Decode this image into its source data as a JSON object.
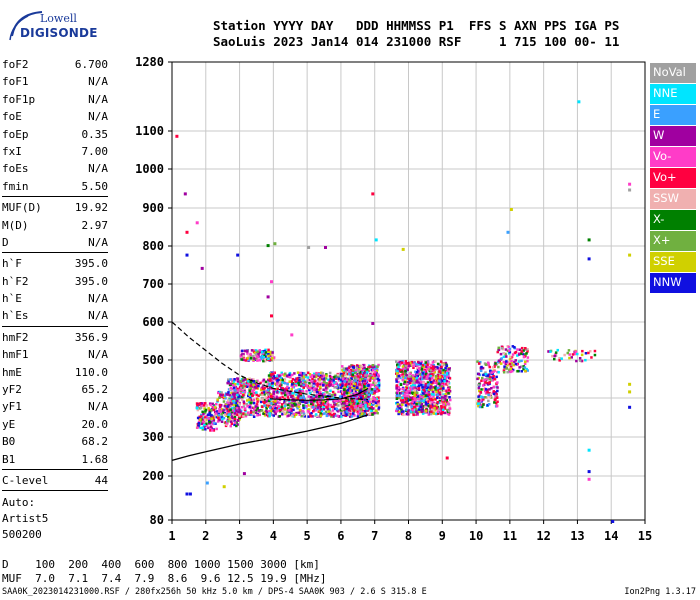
{
  "logo": {
    "top": "Lowell",
    "bottom": "DIGISONDE"
  },
  "header": {
    "line1": "Station YYYY DAY   DDD HHMMSS P1  FFS S AXN PPS IGA PS",
    "line2": "SaoLuis 2023 Jan14 014 231000 RSF     1 715 100 00- 11"
  },
  "params": [
    {
      "group": [
        {
          "k": "foF2",
          "v": "6.700"
        },
        {
          "k": "foF1",
          "v": "N/A"
        },
        {
          "k": "foF1p",
          "v": "N/A"
        },
        {
          "k": "foE",
          "v": "N/A"
        },
        {
          "k": "foEp",
          "v": "0.35"
        },
        {
          "k": "fxI",
          "v": "7.00"
        },
        {
          "k": "foEs",
          "v": "N/A"
        },
        {
          "k": "fmin",
          "v": "5.50"
        }
      ]
    },
    {
      "group": [
        {
          "k": "MUF(D)",
          "v": "19.92"
        },
        {
          "k": "M(D)",
          "v": "2.97"
        },
        {
          "k": "D",
          "v": "N/A"
        }
      ]
    },
    {
      "group": [
        {
          "k": "h`F",
          "v": "395.0"
        },
        {
          "k": "h`F2",
          "v": "395.0"
        },
        {
          "k": "h`E",
          "v": "N/A"
        },
        {
          "k": "h`Es",
          "v": "N/A"
        }
      ]
    },
    {
      "group": [
        {
          "k": "hmF2",
          "v": "356.9"
        },
        {
          "k": "hmF1",
          "v": "N/A"
        },
        {
          "k": "hmE",
          "v": "110.0"
        },
        {
          "k": "yF2",
          "v": "65.2"
        },
        {
          "k": "yF1",
          "v": "N/A"
        },
        {
          "k": "yE",
          "v": "20.0"
        },
        {
          "k": "B0",
          "v": "68.2"
        },
        {
          "k": "B1",
          "v": "1.68"
        }
      ]
    },
    {
      "group": [
        {
          "k": "C-level",
          "v": "44"
        }
      ]
    }
  ],
  "auto": {
    "line1": "Auto:",
    "line2": "Artist5",
    "line3": "500200"
  },
  "legend": [
    {
      "label": "NoVal",
      "color": "#a0a0a0"
    },
    {
      "label": "NNE",
      "color": "#00e5ff"
    },
    {
      "label": "E",
      "color": "#3aa0ff"
    },
    {
      "label": "W",
      "color": "#a000a0"
    },
    {
      "label": "Vo-",
      "color": "#ff3cc8"
    },
    {
      "label": "Vo+",
      "color": "#ff0040"
    },
    {
      "label": "SSW",
      "color": "#f0b0b0"
    },
    {
      "label": "X-",
      "color": "#008000"
    },
    {
      "label": "X+",
      "color": "#70b040"
    },
    {
      "label": "SSE",
      "color": "#d0d000"
    },
    {
      "label": "NNW",
      "color": "#1010e0"
    }
  ],
  "muf_table": {
    "d_row": "D    100  200  400  600  800 1000 1500 3000 [km]",
    "muf_row": "MUF  7.0  7.1  7.4  7.9  8.6  9.6 12.5 19.9 [MHz]"
  },
  "footer": {
    "left": "SAA0K_2023014231000.RSF / 280fx256h 50 kHz 5.0 km / DPS-4 SAA0K 903 / 2.6 S 315.8 E",
    "right": "Ion2Png 1.3.17"
  },
  "chart_data": {
    "type": "scatter",
    "title": "",
    "xlabel": "",
    "ylabel": "",
    "xlim": [
      1,
      15
    ],
    "ylim": [
      80,
      1280
    ],
    "x_ticks": [
      "1",
      "2",
      "3",
      "4",
      "5",
      "6",
      "7",
      "8",
      "9",
      "10",
      "11",
      "12",
      "13",
      "14",
      "15"
    ],
    "y_ticks": [
      "80",
      "200",
      "300",
      "400",
      "500",
      "600",
      "700",
      "800",
      "900",
      "1000",
      "1100",
      "1280"
    ],
    "grid": true,
    "y_scale": "nonlinear",
    "clusters": [
      {
        "f": [
          1.7,
          2.3
        ],
        "h": [
          320,
          390
        ],
        "n": 140
      },
      {
        "f": [
          2.3,
          3.0
        ],
        "h": [
          330,
          420
        ],
        "n": 150
      },
      {
        "f": [
          2.6,
          3.9
        ],
        "h": [
          355,
          455
        ],
        "n": 380
      },
      {
        "f": [
          3.0,
          4.0
        ],
        "h": [
          500,
          530
        ],
        "n": 120
      },
      {
        "f": [
          3.8,
          6.8
        ],
        "h": [
          355,
          470
        ],
        "n": 1100
      },
      {
        "f": [
          6.0,
          7.1
        ],
        "h": [
          360,
          490
        ],
        "n": 500
      },
      {
        "f": [
          7.6,
          9.2
        ],
        "h": [
          360,
          500
        ],
        "n": 900
      },
      {
        "f": [
          10.0,
          10.6
        ],
        "h": [
          380,
          500
        ],
        "n": 160
      },
      {
        "f": [
          10.6,
          11.5
        ],
        "h": [
          470,
          540
        ],
        "n": 120
      },
      {
        "f": [
          12.1,
          13.5
        ],
        "h": [
          500,
          530
        ],
        "n": 40
      }
    ],
    "scatter_points": [
      {
        "f": 1.1,
        "h": 1090,
        "c": 5
      },
      {
        "f": 1.35,
        "h": 940,
        "c": 3
      },
      {
        "f": 1.4,
        "h": 780,
        "c": 10
      },
      {
        "f": 1.4,
        "h": 840,
        "c": 5
      },
      {
        "f": 1.7,
        "h": 865,
        "c": 4
      },
      {
        "f": 1.85,
        "h": 745,
        "c": 3
      },
      {
        "f": 1.4,
        "h": 155,
        "c": 10
      },
      {
        "f": 1.5,
        "h": 155,
        "c": 10
      },
      {
        "f": 2.0,
        "h": 185,
        "c": 2
      },
      {
        "f": 2.5,
        "h": 175,
        "c": 9
      },
      {
        "f": 3.1,
        "h": 210,
        "c": 3
      },
      {
        "f": 2.9,
        "h": 780,
        "c": 10
      },
      {
        "f": 3.8,
        "h": 805,
        "c": 7
      },
      {
        "f": 4.0,
        "h": 810,
        "c": 8
      },
      {
        "f": 5.0,
        "h": 800,
        "c": 0
      },
      {
        "f": 5.5,
        "h": 800,
        "c": 3
      },
      {
        "f": 6.9,
        "h": 940,
        "c": 5
      },
      {
        "f": 7.0,
        "h": 820,
        "c": 1
      },
      {
        "f": 7.8,
        "h": 795,
        "c": 9
      },
      {
        "f": 9.1,
        "h": 250,
        "c": 5
      },
      {
        "f": 10.9,
        "h": 840,
        "c": 2
      },
      {
        "f": 11.0,
        "h": 900,
        "c": 9
      },
      {
        "f": 13.0,
        "h": 1180,
        "c": 1
      },
      {
        "f": 13.3,
        "h": 820,
        "c": 7
      },
      {
        "f": 13.3,
        "h": 770,
        "c": 10
      },
      {
        "f": 13.3,
        "h": 270,
        "c": 1
      },
      {
        "f": 13.3,
        "h": 215,
        "c": 10
      },
      {
        "f": 13.3,
        "h": 195,
        "c": 4
      },
      {
        "f": 14.0,
        "h": 80,
        "c": 10
      },
      {
        "f": 14.5,
        "h": 965,
        "c": 4
      },
      {
        "f": 14.5,
        "h": 950,
        "c": 0
      },
      {
        "f": 14.5,
        "h": 780,
        "c": 9
      },
      {
        "f": 14.5,
        "h": 420,
        "c": 9
      },
      {
        "f": 14.5,
        "h": 380,
        "c": 10
      },
      {
        "f": 14.5,
        "h": 440,
        "c": 9
      },
      {
        "f": 3.9,
        "h": 710,
        "c": 4
      },
      {
        "f": 3.8,
        "h": 670,
        "c": 3
      },
      {
        "f": 3.9,
        "h": 620,
        "c": 5
      },
      {
        "f": 6.9,
        "h": 600,
        "c": 3
      },
      {
        "f": 4.5,
        "h": 570,
        "c": 4
      }
    ],
    "profile_line": [
      {
        "f": 1.0,
        "h": 240
      },
      {
        "f": 1.5,
        "h": 252
      },
      {
        "f": 2.0,
        "h": 262
      },
      {
        "f": 3.0,
        "h": 282
      },
      {
        "f": 4.0,
        "h": 298
      },
      {
        "f": 5.0,
        "h": 315
      },
      {
        "f": 6.0,
        "h": 335
      },
      {
        "f": 6.5,
        "h": 348
      },
      {
        "f": 6.8,
        "h": 357
      }
    ],
    "extrapolated_line": [
      {
        "f": 1.0,
        "h": 600
      },
      {
        "f": 1.5,
        "h": 560
      },
      {
        "f": 2.0,
        "h": 525
      },
      {
        "f": 2.5,
        "h": 490
      },
      {
        "f": 3.0,
        "h": 460
      },
      {
        "f": 3.5,
        "h": 440
      },
      {
        "f": 4.0,
        "h": 425
      },
      {
        "f": 5.0,
        "h": 410
      },
      {
        "f": 6.0,
        "h": 400
      },
      {
        "f": 6.8,
        "h": 396
      }
    ],
    "trace_line": [
      {
        "f": 3.9,
        "h": 398
      },
      {
        "f": 4.5,
        "h": 395
      },
      {
        "f": 5.0,
        "h": 394
      },
      {
        "f": 5.5,
        "h": 395
      },
      {
        "f": 6.0,
        "h": 398
      },
      {
        "f": 6.5,
        "h": 410
      },
      {
        "f": 6.8,
        "h": 425
      }
    ]
  }
}
